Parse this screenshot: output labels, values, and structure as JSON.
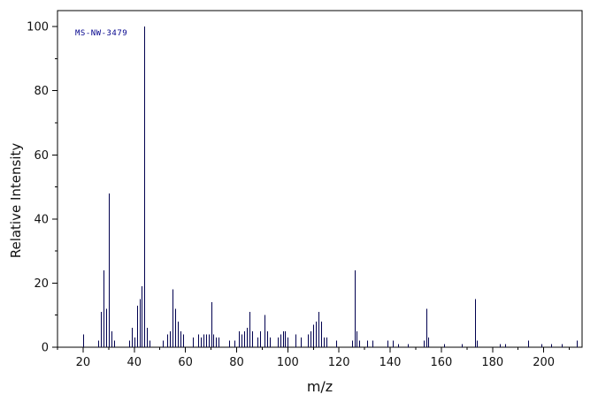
{
  "chart_data": {
    "type": "bar",
    "subtype": "mass-spectrum",
    "annotation": "MS-NW-3479",
    "xlabel": "m/z",
    "ylabel": "Relative Intensity",
    "xlim": [
      10,
      215
    ],
    "ylim": [
      0,
      105
    ],
    "xticks": [
      20,
      40,
      60,
      80,
      100,
      120,
      140,
      160,
      180,
      200
    ],
    "yticks": [
      0,
      20,
      40,
      60,
      80,
      100
    ],
    "grid": false,
    "peak_color": "#00004f",
    "axis_color": "#000000",
    "peaks": [
      [
        20,
        4
      ],
      [
        26,
        2
      ],
      [
        27,
        11
      ],
      [
        28,
        24
      ],
      [
        29,
        12
      ],
      [
        30,
        48
      ],
      [
        31,
        5
      ],
      [
        32,
        2
      ],
      [
        38,
        2
      ],
      [
        39,
        6
      ],
      [
        40,
        3
      ],
      [
        41,
        13
      ],
      [
        42,
        15
      ],
      [
        43,
        19
      ],
      [
        44,
        100
      ],
      [
        45,
        6
      ],
      [
        46,
        2
      ],
      [
        51,
        2
      ],
      [
        53,
        4
      ],
      [
        54,
        5
      ],
      [
        55,
        18
      ],
      [
        56,
        12
      ],
      [
        57,
        8
      ],
      [
        58,
        5
      ],
      [
        59,
        4
      ],
      [
        63,
        3
      ],
      [
        65,
        4
      ],
      [
        66,
        3
      ],
      [
        67,
        4
      ],
      [
        68,
        4
      ],
      [
        69,
        4
      ],
      [
        70,
        14
      ],
      [
        71,
        4
      ],
      [
        72,
        3
      ],
      [
        73,
        3
      ],
      [
        77,
        2
      ],
      [
        79,
        2
      ],
      [
        81,
        5
      ],
      [
        82,
        4
      ],
      [
        83,
        5
      ],
      [
        84,
        6
      ],
      [
        85,
        11
      ],
      [
        86,
        5
      ],
      [
        88,
        3
      ],
      [
        89,
        5
      ],
      [
        91,
        10
      ],
      [
        92,
        5
      ],
      [
        93,
        3
      ],
      [
        96,
        3
      ],
      [
        97,
        4
      ],
      [
        98,
        5
      ],
      [
        99,
        5
      ],
      [
        100,
        3
      ],
      [
        103,
        4
      ],
      [
        105,
        3
      ],
      [
        108,
        4
      ],
      [
        109,
        5
      ],
      [
        110,
        7
      ],
      [
        111,
        8
      ],
      [
        112,
        11
      ],
      [
        113,
        8
      ],
      [
        114,
        3
      ],
      [
        115,
        3
      ],
      [
        119,
        2
      ],
      [
        125,
        2
      ],
      [
        126,
        24
      ],
      [
        127,
        5
      ],
      [
        128,
        2
      ],
      [
        131,
        2
      ],
      [
        133,
        2
      ],
      [
        139,
        2
      ],
      [
        141,
        2
      ],
      [
        143,
        1
      ],
      [
        147,
        1
      ],
      [
        153,
        2
      ],
      [
        154,
        12
      ],
      [
        155,
        3
      ],
      [
        161,
        1
      ],
      [
        168,
        1
      ],
      [
        173,
        15
      ],
      [
        174,
        2
      ],
      [
        183,
        1
      ],
      [
        185,
        1
      ],
      [
        194,
        2
      ],
      [
        199,
        1
      ],
      [
        203,
        1
      ],
      [
        207,
        1
      ],
      [
        213,
        2
      ]
    ]
  }
}
